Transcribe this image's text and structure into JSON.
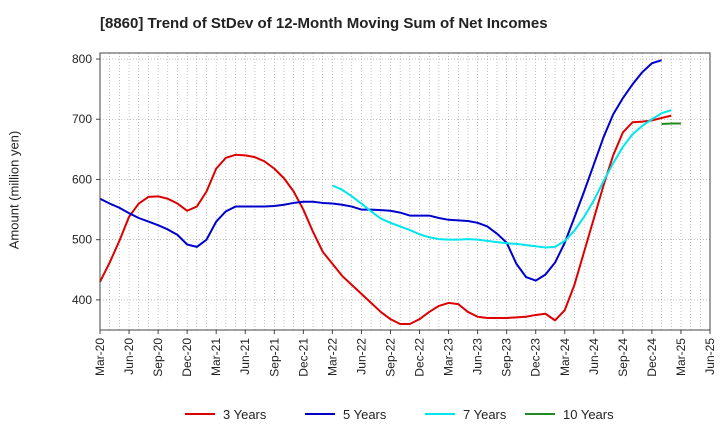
{
  "chart_data": {
    "type": "line",
    "title": "[8860]  Trend of StDev of 12-Month Moving Sum of Net Incomes",
    "xlabel": "",
    "ylabel": "Amount (million yen)",
    "ylim": [
      350,
      810
    ],
    "yticks": [
      400,
      500,
      600,
      700,
      800
    ],
    "x_tick_labels": [
      "Mar-20",
      "Jun-20",
      "Sep-20",
      "Dec-20",
      "Mar-21",
      "Jun-21",
      "Sep-21",
      "Dec-21",
      "Mar-22",
      "Jun-22",
      "Sep-22",
      "Dec-22",
      "Mar-23",
      "Jun-23",
      "Sep-23",
      "Dec-23",
      "Mar-24",
      "Jun-24",
      "Sep-24",
      "Dec-24",
      "Mar-25",
      "Jun-25"
    ],
    "x_range": [
      "Mar-20",
      "Jun-25"
    ],
    "grid": true,
    "legend_position": "bottom",
    "series": [
      {
        "name": "3 Years",
        "color": "#dd0000",
        "start": "Mar-20",
        "values": [
          430,
          462,
          498,
          538,
          560,
          571,
          572,
          568,
          560,
          548,
          555,
          580,
          618,
          636,
          641,
          640,
          637,
          630,
          618,
          602,
          580,
          550,
          513,
          480,
          460,
          440,
          425,
          410,
          395,
          380,
          368,
          360,
          360,
          368,
          380,
          390,
          395,
          393,
          380,
          372,
          370,
          370,
          370,
          371,
          372,
          375,
          377,
          366,
          383,
          425,
          480,
          535,
          590,
          640,
          678,
          695,
          696,
          698,
          702,
          706
        ]
      },
      {
        "name": "5 Years",
        "color": "#0000cc",
        "start": "Mar-20",
        "values": [
          568,
          560,
          553,
          544,
          536,
          530,
          524,
          517,
          508,
          492,
          488,
          500,
          530,
          547,
          555,
          555,
          555,
          555,
          556,
          558,
          561,
          563,
          563,
          561,
          560,
          558,
          555,
          550,
          550,
          549,
          548,
          545,
          540,
          540,
          540,
          536,
          533,
          532,
          531,
          528,
          522,
          510,
          495,
          460,
          438,
          432,
          442,
          462,
          495,
          537,
          580,
          625,
          670,
          708,
          735,
          758,
          778,
          793,
          798
        ]
      },
      {
        "name": "7 Years",
        "color": "#00e5ee",
        "start": "Mar-22",
        "values": [
          590,
          583,
          572,
          560,
          547,
          535,
          528,
          522,
          516,
          509,
          504,
          501,
          500,
          500,
          501,
          500,
          498,
          496,
          494,
          493,
          491,
          489,
          487,
          488,
          498,
          515,
          538,
          565,
          597,
          627,
          654,
          675,
          689,
          700,
          710,
          715
        ]
      },
      {
        "name": "10 Years",
        "color": "#228b22",
        "start": "Jan-25",
        "values": [
          692,
          693,
          693
        ]
      }
    ]
  }
}
